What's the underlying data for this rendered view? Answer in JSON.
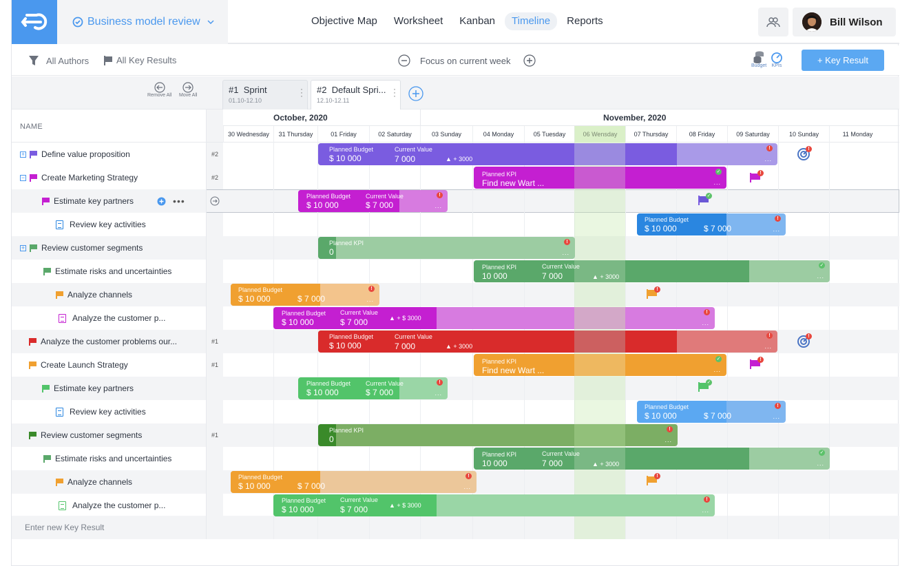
{
  "project": {
    "title": "Business model review"
  },
  "nav": {
    "tabs": [
      "Objective Map",
      "Worksheet",
      "Kanban",
      "Timeline",
      "Reports"
    ],
    "active": "Timeline"
  },
  "user": {
    "name": "Bill Wilson"
  },
  "toolbar": {
    "authors": "All Authors",
    "key_results": "All Key Results",
    "focus": "Focus on current week",
    "budget_label": "Budget",
    "kpis_label": "KPIs",
    "add_kr": "+ Key Result"
  },
  "sprints": [
    {
      "num": "#1",
      "name": "Sprint",
      "dates": "01.10-12.10"
    },
    {
      "num": "#2",
      "name": "Default Spri...",
      "dates": "12.10-12.11"
    }
  ],
  "moves": {
    "remove_all": "Remove All",
    "move_all": "Move All"
  },
  "grid": {
    "name_header": "NAME",
    "months": [
      "October, 2020",
      "November, 2020"
    ],
    "days": [
      "30 Wednesday",
      "31 Thursday",
      "01 Friday",
      "02 Saturday",
      "03 Sunday",
      "04 Monday",
      "05 Tuesday",
      "06 Wensday",
      "07 Thursday",
      "08 Friday",
      "09 Saturday",
      "10 Sunday",
      "11 Monday"
    ],
    "enter_new": "Enter new Key Result"
  },
  "rows": [
    {
      "name": "Define value proposition",
      "sprint": "#2"
    },
    {
      "name": "Create Marketing Strategy",
      "sprint": "#2"
    },
    {
      "name": "Estimate key partners",
      "sprint": ""
    },
    {
      "name": "Review key activities",
      "sprint": ""
    },
    {
      "name": "Review customer segments",
      "sprint": ""
    },
    {
      "name": "Estimate risks and uncertainties",
      "sprint": ""
    },
    {
      "name": "Analyze channels",
      "sprint": ""
    },
    {
      "name": "Analyze the customer p...",
      "sprint": ""
    },
    {
      "name": "Analyze the customer problems our...",
      "sprint": "#1"
    },
    {
      "name": "Create Launch Strategy",
      "sprint": "#1"
    },
    {
      "name": "Estimate key partners",
      "sprint": ""
    },
    {
      "name": "Review key activities",
      "sprint": ""
    },
    {
      "name": "Review customer segments",
      "sprint": "#1"
    },
    {
      "name": "Estimate risks and uncertainties",
      "sprint": ""
    },
    {
      "name": "Analyze channels",
      "sprint": ""
    },
    {
      "name": "Analyze the customer p...",
      "sprint": ""
    }
  ],
  "bars": {
    "b0": {
      "l1": "Planned Budget",
      "v1": "$ 10 000",
      "l2": "Current Value",
      "v2": "7 000",
      "delta": "▲ + 3000",
      "dots": "..."
    },
    "b1": {
      "l1": "Planned KPI",
      "v1": "Find new Wart ...",
      "dots": "..."
    },
    "b2": {
      "l1": "Planned Budget",
      "v1": "$ 10 000",
      "l2": "Current Value",
      "v2": "$ 7 000",
      "dots": "..."
    },
    "b3": {
      "l1": "Planned Budget",
      "v1": "$ 10 000",
      "v2": "$ 7 000",
      "dots": "..."
    },
    "b4": {
      "l1": "Planned KPI",
      "v1": "0",
      "dots": "..."
    },
    "b5": {
      "l1": "Planned KPI",
      "v1": "10 000",
      "l2": "Current Value",
      "v2": "7 000",
      "delta": "▲ + 3000",
      "dots": "..."
    },
    "b6": {
      "l1": "Planned Budget",
      "v1": "$ 10 000",
      "v2": "$ 7 000",
      "dots": "..."
    },
    "b7": {
      "l1": "Planned Budget",
      "v1": "$ 10 000",
      "l2": "Current Value",
      "v2": "$ 7 000",
      "delta": "▲ + $ 3000",
      "dots": "..."
    },
    "b8": {
      "l1": "Planned Budget",
      "v1": "$ 10 000",
      "l2": "Current Value",
      "v2": "7 000",
      "delta": "▲ + 3000",
      "dots": "..."
    },
    "b9": {
      "l1": "Planned KPI",
      "v1": "Find new Wart ...",
      "dots": "..."
    },
    "b10": {
      "l1": "Planned Budget",
      "v1": "$ 10 000",
      "l2": "Current Value",
      "v2": "$ 7 000",
      "dots": "..."
    },
    "b11": {
      "l1": "Planned Budget",
      "v1": "$ 10 000",
      "v2": "$ 7 000",
      "dots": "..."
    },
    "b12": {
      "l1": "Planned KPI",
      "v1": "0",
      "dots": "..."
    },
    "b13": {
      "l1": "Planned KPI",
      "v1": "10 000",
      "l2": "Current Value",
      "v2": "7 000",
      "delta": "▲ + 3000",
      "dots": "..."
    },
    "b14": {
      "l1": "Planned Budget",
      "v1": "$ 10 000",
      "v2": "$ 7 000",
      "dots": "..."
    },
    "b15": {
      "l1": "Planned Budget",
      "v1": "$ 10 000",
      "l2": "Current Value",
      "v2": "$ 7 000",
      "delta": "▲ + $ 3000",
      "dots": "..."
    }
  },
  "colors": {
    "accent": "#4a98ee",
    "purple": "#7a5ce0",
    "magenta": "#c41fd1",
    "green": "#5aa86a",
    "orange": "#f0a030",
    "red": "#d92b2b",
    "blue": "#2a86e0",
    "bright_green": "#52c46a"
  }
}
